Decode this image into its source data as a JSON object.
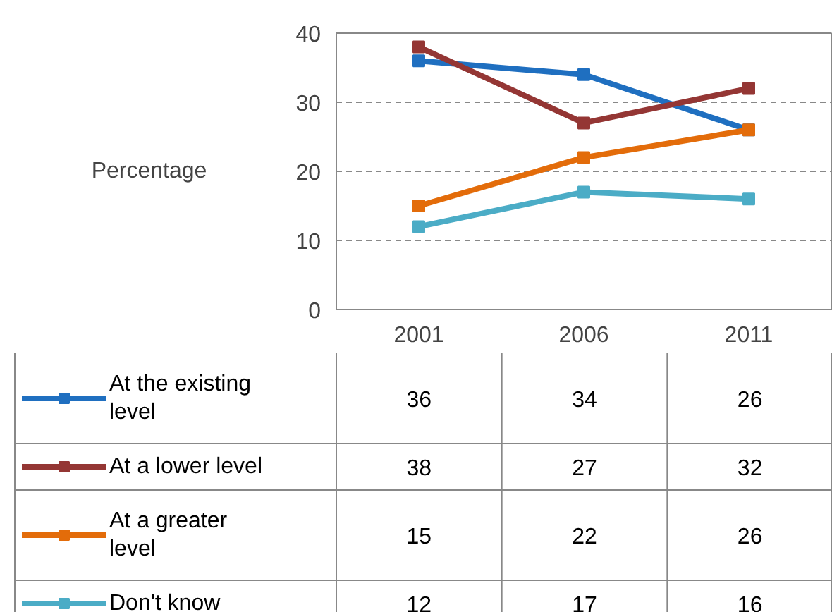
{
  "chart_data": {
    "type": "line",
    "ylabel": "Percentage",
    "categories": [
      "2001",
      "2006",
      "2011"
    ],
    "ylim": [
      0,
      40
    ],
    "yticks": [
      0,
      10,
      20,
      30,
      40
    ],
    "grid": "y",
    "marker": "square",
    "line_style": "solid",
    "data_labels": true,
    "legend": "bottom",
    "series": [
      {
        "name": "At the existing level",
        "color": "#1f6fc0",
        "values": [
          36,
          34,
          26
        ]
      },
      {
        "name": "At a lower level",
        "color": "#943634",
        "values": [
          38,
          27,
          32
        ]
      },
      {
        "name": "At a greater level",
        "color": "#e36c0a",
        "values": [
          15,
          22,
          26
        ]
      },
      {
        "name": "Don't know",
        "color": "#4bacc6",
        "values": [
          12,
          17,
          16
        ]
      }
    ]
  }
}
